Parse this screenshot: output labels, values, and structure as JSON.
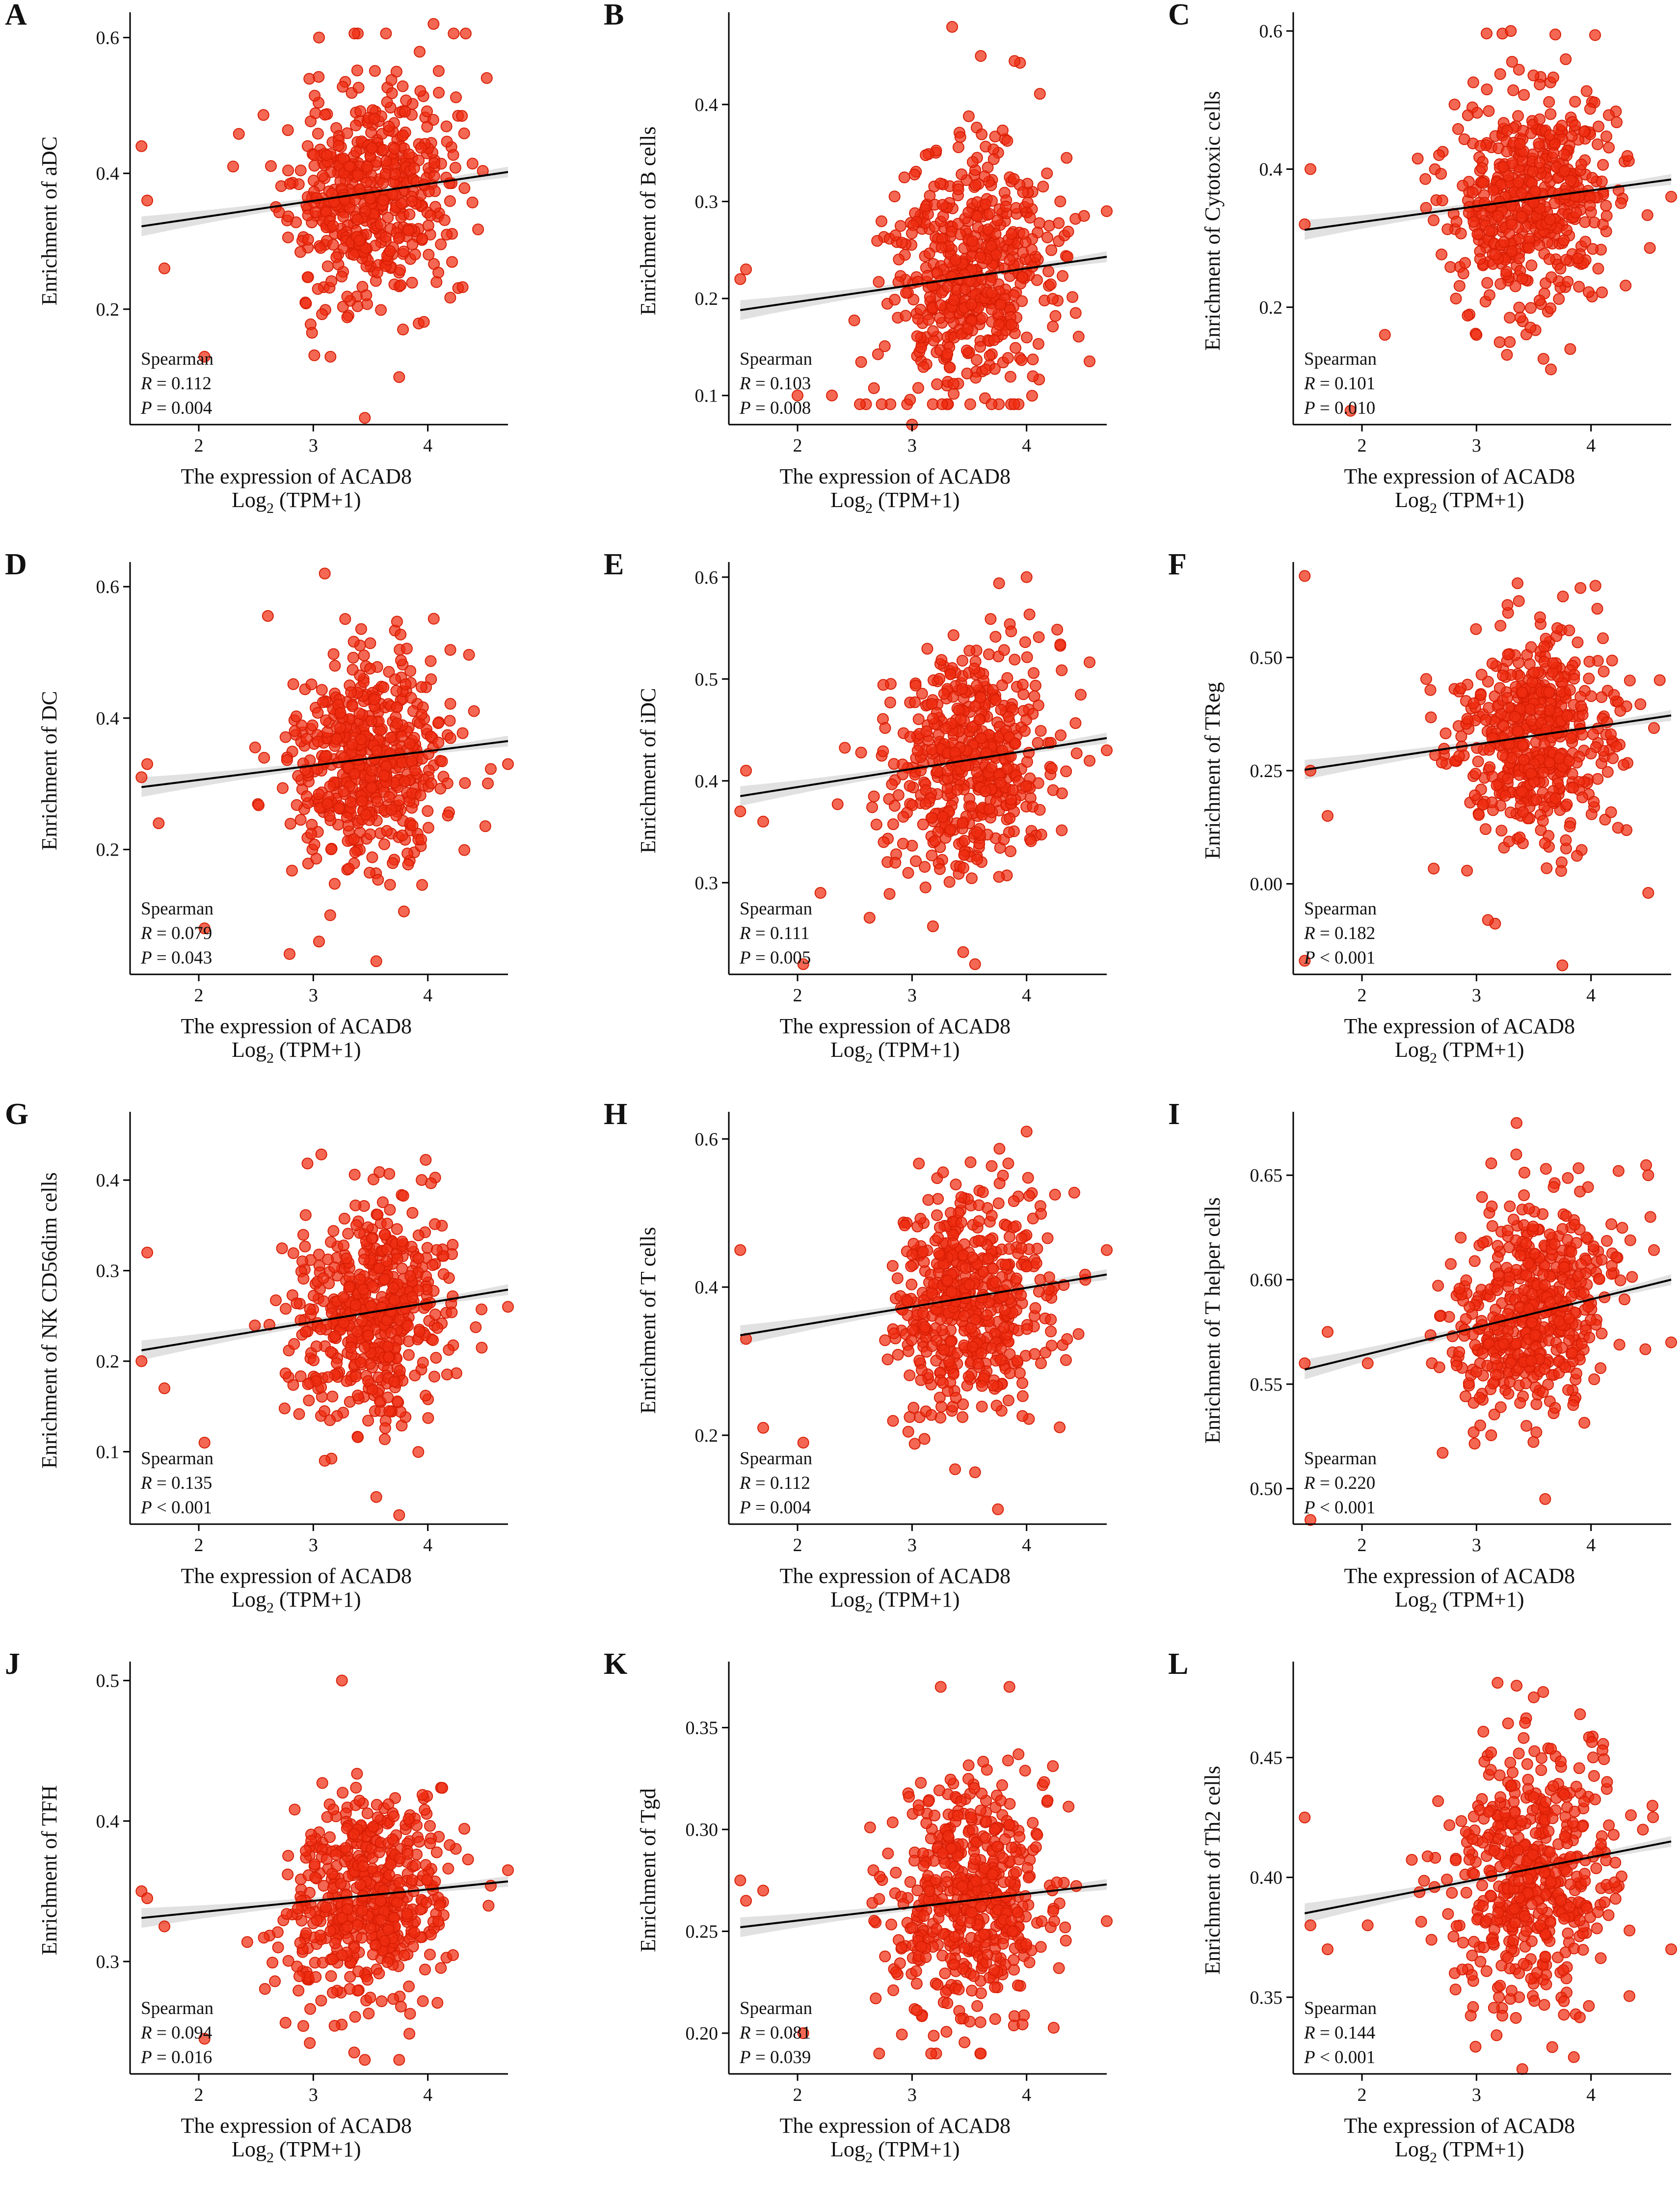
{
  "figure": {
    "point_color": "#ee2d10",
    "line_color": "#000000",
    "band_color": "#c8c8c8"
  },
  "chart_data": [
    {
      "panel": "A",
      "type": "scatter",
      "xlabel_line1": "The  expression   of ACAD8",
      "xlabel_line2": "Log",
      "xlabel_sub": "2",
      "xlabel_line2_suffix": " (TPM+1)",
      "ylabel": "Enrichment of aDC",
      "xlim": [
        1.4,
        4.7
      ],
      "ylim": [
        0.03,
        0.63
      ],
      "xticks": [
        2,
        3,
        4
      ],
      "xtick_labels": [
        "2",
        "3",
        "4"
      ],
      "yticks": [
        0.2,
        0.4,
        0.6
      ],
      "ytick_labels": [
        "0.2",
        "0.4",
        "0.6"
      ],
      "x_center": 3.5,
      "x_sd": 0.35,
      "y_center": 0.375,
      "y_sd": 0.08,
      "n_points": 520,
      "seed": 11,
      "fit_line": {
        "x": [
          1.5,
          4.7
        ],
        "y": [
          0.322,
          0.402
        ]
      },
      "outliers": [
        [
          1.5,
          0.44
        ],
        [
          1.55,
          0.36
        ],
        [
          1.7,
          0.26
        ],
        [
          2.05,
          0.13
        ],
        [
          2.3,
          0.41
        ],
        [
          3.15,
          0.13
        ],
        [
          3.45,
          0.04
        ],
        [
          3.75,
          0.1
        ],
        [
          4.05,
          0.62
        ],
        [
          3.05,
          0.6
        ]
      ],
      "stats": {
        "method": "Spearman",
        "R_label": "R",
        "R_value": " = 0.112",
        "P_label": "P",
        "P_value": " = 0.004"
      }
    },
    {
      "panel": "B",
      "type": "scatter",
      "xlabel_line1": "The  expression   of ACAD8",
      "xlabel_line2": "Log",
      "xlabel_sub": "2",
      "xlabel_line2_suffix": " (TPM+1)",
      "ylabel": "Enrichment of B cells",
      "xlim": [
        1.4,
        4.7
      ],
      "ylim": [
        0.07,
        0.49
      ],
      "xticks": [
        2,
        3,
        4
      ],
      "xtick_labels": [
        "2",
        "3",
        "4"
      ],
      "yticks": [
        0.1,
        0.2,
        0.3,
        0.4
      ],
      "ytick_labels": [
        "0.1",
        "0.2",
        "0.3",
        "0.4"
      ],
      "x_center": 3.5,
      "x_sd": 0.35,
      "y_center": 0.225,
      "y_sd": 0.065,
      "n_points": 520,
      "seed": 23,
      "fit_line": {
        "x": [
          1.5,
          4.7
        ],
        "y": [
          0.188,
          0.243
        ]
      },
      "outliers": [
        [
          1.5,
          0.22
        ],
        [
          1.55,
          0.23
        ],
        [
          2.0,
          0.1
        ],
        [
          3.0,
          0.07
        ],
        [
          3.35,
          0.48
        ],
        [
          3.6,
          0.45
        ],
        [
          4.7,
          0.29
        ],
        [
          2.3,
          0.1
        ]
      ],
      "stats": {
        "method": "Spearman",
        "R_label": "R",
        "R_value": " = 0.103",
        "P_label": "P",
        "P_value": " = 0.008"
      }
    },
    {
      "panel": "C",
      "type": "scatter",
      "xlabel_line1": "The  expression   of ACAD8",
      "xlabel_line2": "Log",
      "xlabel_sub": "2",
      "xlabel_line2_suffix": " (TPM+1)",
      "ylabel": "Enrichment of Cytotoxic cells",
      "xlim": [
        1.4,
        4.7
      ],
      "ylim": [
        0.03,
        0.62
      ],
      "xticks": [
        2,
        3,
        4
      ],
      "xtick_labels": [
        "2",
        "3",
        "4"
      ],
      "yticks": [
        0.2,
        0.4,
        0.6
      ],
      "ytick_labels": [
        "0.2",
        "0.4",
        "0.6"
      ],
      "x_center": 3.5,
      "x_sd": 0.35,
      "y_center": 0.36,
      "y_sd": 0.08,
      "n_points": 520,
      "seed": 37,
      "fit_line": {
        "x": [
          1.5,
          4.7
        ],
        "y": [
          0.312,
          0.385
        ]
      },
      "outliers": [
        [
          1.55,
          0.4
        ],
        [
          1.5,
          0.32
        ],
        [
          1.9,
          0.05
        ],
        [
          2.2,
          0.16
        ],
        [
          3.3,
          0.6
        ],
        [
          3.0,
          0.16
        ],
        [
          3.65,
          0.11
        ],
        [
          4.7,
          0.36
        ]
      ],
      "stats": {
        "method": "Spearman",
        "R_label": "R",
        "R_value": " = 0.101",
        "P_label": "P",
        "P_value": " = 0.010"
      }
    },
    {
      "panel": "D",
      "type": "scatter",
      "xlabel_line1": "The  expression   of ACAD8",
      "xlabel_line2": "Log",
      "xlabel_sub": "2",
      "xlabel_line2_suffix": " (TPM+1)",
      "ylabel": "Enrichment of DC",
      "xlim": [
        1.4,
        4.7
      ],
      "ylim": [
        0.01,
        0.63
      ],
      "xticks": [
        2,
        3,
        4
      ],
      "xtick_labels": [
        "2",
        "3",
        "4"
      ],
      "yticks": [
        0.2,
        0.4,
        0.6
      ],
      "ytick_labels": [
        "0.2",
        "0.4",
        "0.6"
      ],
      "x_center": 3.5,
      "x_sd": 0.35,
      "y_center": 0.345,
      "y_sd": 0.085,
      "n_points": 520,
      "seed": 41,
      "fit_line": {
        "x": [
          1.5,
          4.7
        ],
        "y": [
          0.295,
          0.365
        ]
      },
      "outliers": [
        [
          1.5,
          0.31
        ],
        [
          1.55,
          0.33
        ],
        [
          1.65,
          0.24
        ],
        [
          2.05,
          0.08
        ],
        [
          3.1,
          0.62
        ],
        [
          3.05,
          0.06
        ],
        [
          3.55,
          0.03
        ],
        [
          4.7,
          0.33
        ]
      ],
      "stats": {
        "method": "Spearman",
        "R_label": "R",
        "R_value": " = 0.079",
        "P_label": "P",
        "P_value": " = 0.043"
      }
    },
    {
      "panel": "E",
      "type": "scatter",
      "xlabel_line1": "The  expression   of ACAD8",
      "xlabel_line2": "Log",
      "xlabel_sub": "2",
      "xlabel_line2_suffix": " (TPM+1)",
      "ylabel": "Enrichment of iDC",
      "xlim": [
        1.4,
        4.7
      ],
      "ylim": [
        0.21,
        0.61
      ],
      "xticks": [
        2,
        3,
        4
      ],
      "xtick_labels": [
        "2",
        "3",
        "4"
      ],
      "yticks": [
        0.3,
        0.4,
        0.5,
        0.6
      ],
      "ytick_labels": [
        "0.3",
        "0.4",
        "0.5",
        "0.6"
      ],
      "x_center": 3.5,
      "x_sd": 0.35,
      "y_center": 0.425,
      "y_sd": 0.055,
      "n_points": 520,
      "seed": 53,
      "fit_line": {
        "x": [
          1.5,
          4.7
        ],
        "y": [
          0.385,
          0.442
        ]
      },
      "outliers": [
        [
          1.5,
          0.37
        ],
        [
          1.55,
          0.41
        ],
        [
          1.7,
          0.36
        ],
        [
          2.05,
          0.22
        ],
        [
          2.2,
          0.29
        ],
        [
          4.0,
          0.6
        ],
        [
          3.55,
          0.22
        ],
        [
          4.7,
          0.43
        ]
      ],
      "stats": {
        "method": "Spearman",
        "R_label": "R",
        "R_value": " = 0.111",
        "P_label": "P",
        "P_value": " = 0.005"
      }
    },
    {
      "panel": "F",
      "type": "scatter",
      "xlabel_line1": "The  expression   of ACAD8",
      "xlabel_line2": "Log",
      "xlabel_sub": "2",
      "xlabel_line2_suffix": " (TPM+1)",
      "ylabel": "Enrichment of TReg",
      "xlim": [
        1.4,
        4.7
      ],
      "ylim": [
        -0.2,
        0.7
      ],
      "xticks": [
        2,
        3,
        4
      ],
      "xtick_labels": [
        "2",
        "3",
        "4"
      ],
      "yticks": [
        0.0,
        0.25,
        0.5
      ],
      "ytick_labels": [
        "0.00",
        "0.25",
        "0.50"
      ],
      "x_center": 3.5,
      "x_sd": 0.35,
      "y_center": 0.325,
      "y_sd": 0.11,
      "n_points": 520,
      "seed": 67,
      "fit_line": {
        "x": [
          1.5,
          4.7
        ],
        "y": [
          0.252,
          0.372
        ]
      },
      "outliers": [
        [
          1.5,
          0.68
        ],
        [
          1.55,
          0.25
        ],
        [
          1.7,
          0.15
        ],
        [
          1.5,
          -0.17
        ],
        [
          3.1,
          -0.08
        ],
        [
          3.75,
          -0.18
        ],
        [
          4.5,
          -0.02
        ],
        [
          4.6,
          0.45
        ]
      ],
      "stats": {
        "method": "Spearman",
        "R_label": "R",
        "R_value": " = 0.182",
        "P_label": "P",
        "P_value": " < 0.001"
      }
    },
    {
      "panel": "G",
      "type": "scatter",
      "xlabel_line1": "The  expression   of ACAD8",
      "xlabel_line2": "Log",
      "xlabel_sub": "2",
      "xlabel_line2_suffix": " (TPM+1)",
      "ylabel": "Enrichment of NK CD56dim cells",
      "xlim": [
        1.4,
        4.7
      ],
      "ylim": [
        0.02,
        0.47
      ],
      "xticks": [
        2,
        3,
        4
      ],
      "xtick_labels": [
        "2",
        "3",
        "4"
      ],
      "yticks": [
        0.1,
        0.2,
        0.3,
        0.4
      ],
      "ytick_labels": [
        "0.1",
        "0.2",
        "0.3",
        "0.4"
      ],
      "x_center": 3.5,
      "x_sd": 0.35,
      "y_center": 0.25,
      "y_sd": 0.06,
      "n_points": 520,
      "seed": 79,
      "fit_line": {
        "x": [
          1.5,
          4.7
        ],
        "y": [
          0.212,
          0.279
        ]
      },
      "outliers": [
        [
          1.5,
          0.2
        ],
        [
          1.55,
          0.32
        ],
        [
          1.7,
          0.17
        ],
        [
          2.05,
          0.11
        ],
        [
          3.55,
          0.05
        ],
        [
          3.75,
          0.03
        ],
        [
          3.1,
          0.09
        ],
        [
          4.7,
          0.26
        ]
      ],
      "stats": {
        "method": "Spearman",
        "R_label": "R",
        "R_value": " = 0.135",
        "P_label": "P",
        "P_value": " < 0.001"
      }
    },
    {
      "panel": "H",
      "type": "scatter",
      "xlabel_line1": "The  expression   of ACAD8",
      "xlabel_line2": "Log",
      "xlabel_sub": "2",
      "xlabel_line2_suffix": " (TPM+1)",
      "ylabel": "Enrichment of T cells",
      "xlim": [
        1.4,
        4.7
      ],
      "ylim": [
        0.08,
        0.63
      ],
      "xticks": [
        2,
        3,
        4
      ],
      "xtick_labels": [
        "2",
        "3",
        "4"
      ],
      "yticks": [
        0.2,
        0.4,
        0.6
      ],
      "ytick_labels": [
        "0.2",
        "0.4",
        "0.6"
      ],
      "x_center": 3.5,
      "x_sd": 0.35,
      "y_center": 0.38,
      "y_sd": 0.08,
      "n_points": 520,
      "seed": 83,
      "fit_line": {
        "x": [
          1.5,
          4.7
        ],
        "y": [
          0.335,
          0.417
        ]
      },
      "outliers": [
        [
          1.5,
          0.45
        ],
        [
          1.55,
          0.33
        ],
        [
          1.7,
          0.21
        ],
        [
          2.05,
          0.19
        ],
        [
          3.55,
          0.15
        ],
        [
          3.75,
          0.1
        ],
        [
          4.0,
          0.61
        ],
        [
          4.7,
          0.45
        ]
      ],
      "stats": {
        "method": "Spearman",
        "R_label": "R",
        "R_value": " = 0.112",
        "P_label": "P",
        "P_value": " = 0.004"
      }
    },
    {
      "panel": "I",
      "type": "scatter",
      "xlabel_line1": "The  expression   of ACAD8",
      "xlabel_line2": "Log",
      "xlabel_sub": "2",
      "xlabel_line2_suffix": " (TPM+1)",
      "ylabel": "Enrichment of T helper cells",
      "xlim": [
        1.4,
        4.7
      ],
      "ylim": [
        0.483,
        0.678
      ],
      "xticks": [
        2,
        3,
        4
      ],
      "xtick_labels": [
        "2",
        "3",
        "4"
      ],
      "yticks": [
        0.5,
        0.55,
        0.6,
        0.65
      ],
      "ytick_labels": [
        "0.50",
        "0.55",
        "0.60",
        "0.65"
      ],
      "x_center": 3.5,
      "x_sd": 0.35,
      "y_center": 0.585,
      "y_sd": 0.025,
      "n_points": 520,
      "seed": 97,
      "fit_line": {
        "x": [
          1.5,
          4.7
        ],
        "y": [
          0.557,
          0.6
        ]
      },
      "outliers": [
        [
          1.5,
          0.56
        ],
        [
          1.55,
          0.485
        ],
        [
          1.7,
          0.575
        ],
        [
          2.05,
          0.56
        ],
        [
          3.35,
          0.675
        ],
        [
          3.6,
          0.495
        ],
        [
          4.5,
          0.65
        ],
        [
          4.7,
          0.57
        ]
      ],
      "stats": {
        "method": "Spearman",
        "R_label": "R",
        "R_value": " = 0.220",
        "P_label": "P",
        "P_value": " < 0.001"
      }
    },
    {
      "panel": "J",
      "type": "scatter",
      "xlabel_line1": "The  expression   of ACAD8",
      "xlabel_line2": "Log",
      "xlabel_sub": "2",
      "xlabel_line2_suffix": " (TPM+1)",
      "ylabel": "Enrichment of TFH",
      "xlim": [
        1.4,
        4.7
      ],
      "ylim": [
        0.22,
        0.51
      ],
      "xticks": [
        2,
        3,
        4
      ],
      "xtick_labels": [
        "2",
        "3",
        "4"
      ],
      "yticks": [
        0.3,
        0.4,
        0.5
      ],
      "ytick_labels": [
        "0.3",
        "0.4",
        "0.5"
      ],
      "x_center": 3.5,
      "x_sd": 0.35,
      "y_center": 0.345,
      "y_sd": 0.038,
      "n_points": 520,
      "seed": 101,
      "fit_line": {
        "x": [
          1.5,
          4.7
        ],
        "y": [
          0.331,
          0.357
        ]
      },
      "outliers": [
        [
          1.5,
          0.35
        ],
        [
          1.55,
          0.345
        ],
        [
          1.7,
          0.325
        ],
        [
          2.05,
          0.245
        ],
        [
          3.25,
          0.5
        ],
        [
          3.45,
          0.23
        ],
        [
          3.75,
          0.23
        ],
        [
          4.7,
          0.365
        ]
      ],
      "stats": {
        "method": "Spearman",
        "R_label": "R",
        "R_value": " = 0.094",
        "P_label": "P",
        "P_value": " = 0.016"
      }
    },
    {
      "panel": "K",
      "type": "scatter",
      "xlabel_line1": "The  expression   of ACAD8",
      "xlabel_line2": "Log",
      "xlabel_sub": "2",
      "xlabel_line2_suffix": " (TPM+1)",
      "ylabel": "Enrichment of Tgd",
      "xlim": [
        1.4,
        4.7
      ],
      "ylim": [
        0.18,
        0.38
      ],
      "xticks": [
        2,
        3,
        4
      ],
      "xtick_labels": [
        "2",
        "3",
        "4"
      ],
      "yticks": [
        0.2,
        0.25,
        0.3,
        0.35
      ],
      "ytick_labels": [
        "0.20",
        "0.25",
        "0.30",
        "0.35"
      ],
      "x_center": 3.5,
      "x_sd": 0.35,
      "y_center": 0.265,
      "y_sd": 0.03,
      "n_points": 520,
      "seed": 113,
      "fit_line": {
        "x": [
          1.5,
          4.7
        ],
        "y": [
          0.252,
          0.273
        ]
      },
      "outliers": [
        [
          1.5,
          0.275
        ],
        [
          1.55,
          0.265
        ],
        [
          1.7,
          0.27
        ],
        [
          2.05,
          0.2
        ],
        [
          3.25,
          0.37
        ],
        [
          3.85,
          0.37
        ],
        [
          3.6,
          0.19
        ],
        [
          4.7,
          0.255
        ]
      ],
      "stats": {
        "method": "Spearman",
        "R_label": "R",
        "R_value": " = 0.081",
        "P_label": "P",
        "P_value": " = 0.039"
      }
    },
    {
      "panel": "L",
      "type": "scatter",
      "xlabel_line1": "The  expression   of ACAD8",
      "xlabel_line2": "Log",
      "xlabel_sub": "2",
      "xlabel_line2_suffix": " (TPM+1)",
      "ylabel": "Enrichment of Th2 cells",
      "xlim": [
        1.4,
        4.7
      ],
      "ylim": [
        0.318,
        0.488
      ],
      "xticks": [
        2,
        3,
        4
      ],
      "xtick_labels": [
        "2",
        "3",
        "4"
      ],
      "yticks": [
        0.35,
        0.4,
        0.45
      ],
      "ytick_labels": [
        "0.35",
        "0.40",
        "0.45"
      ],
      "x_center": 3.5,
      "x_sd": 0.35,
      "y_center": 0.405,
      "y_sd": 0.028,
      "n_points": 520,
      "seed": 127,
      "fit_line": {
        "x": [
          1.5,
          4.7
        ],
        "y": [
          0.385,
          0.415
        ]
      },
      "outliers": [
        [
          1.5,
          0.425
        ],
        [
          1.55,
          0.38
        ],
        [
          1.7,
          0.37
        ],
        [
          2.05,
          0.38
        ],
        [
          3.35,
          0.48
        ],
        [
          3.4,
          0.32
        ],
        [
          3.85,
          0.325
        ],
        [
          4.7,
          0.37
        ]
      ],
      "stats": {
        "method": "Spearman",
        "R_label": "R",
        "R_value": " = 0.144",
        "P_label": "P",
        "P_value": " < 0.001"
      }
    }
  ]
}
